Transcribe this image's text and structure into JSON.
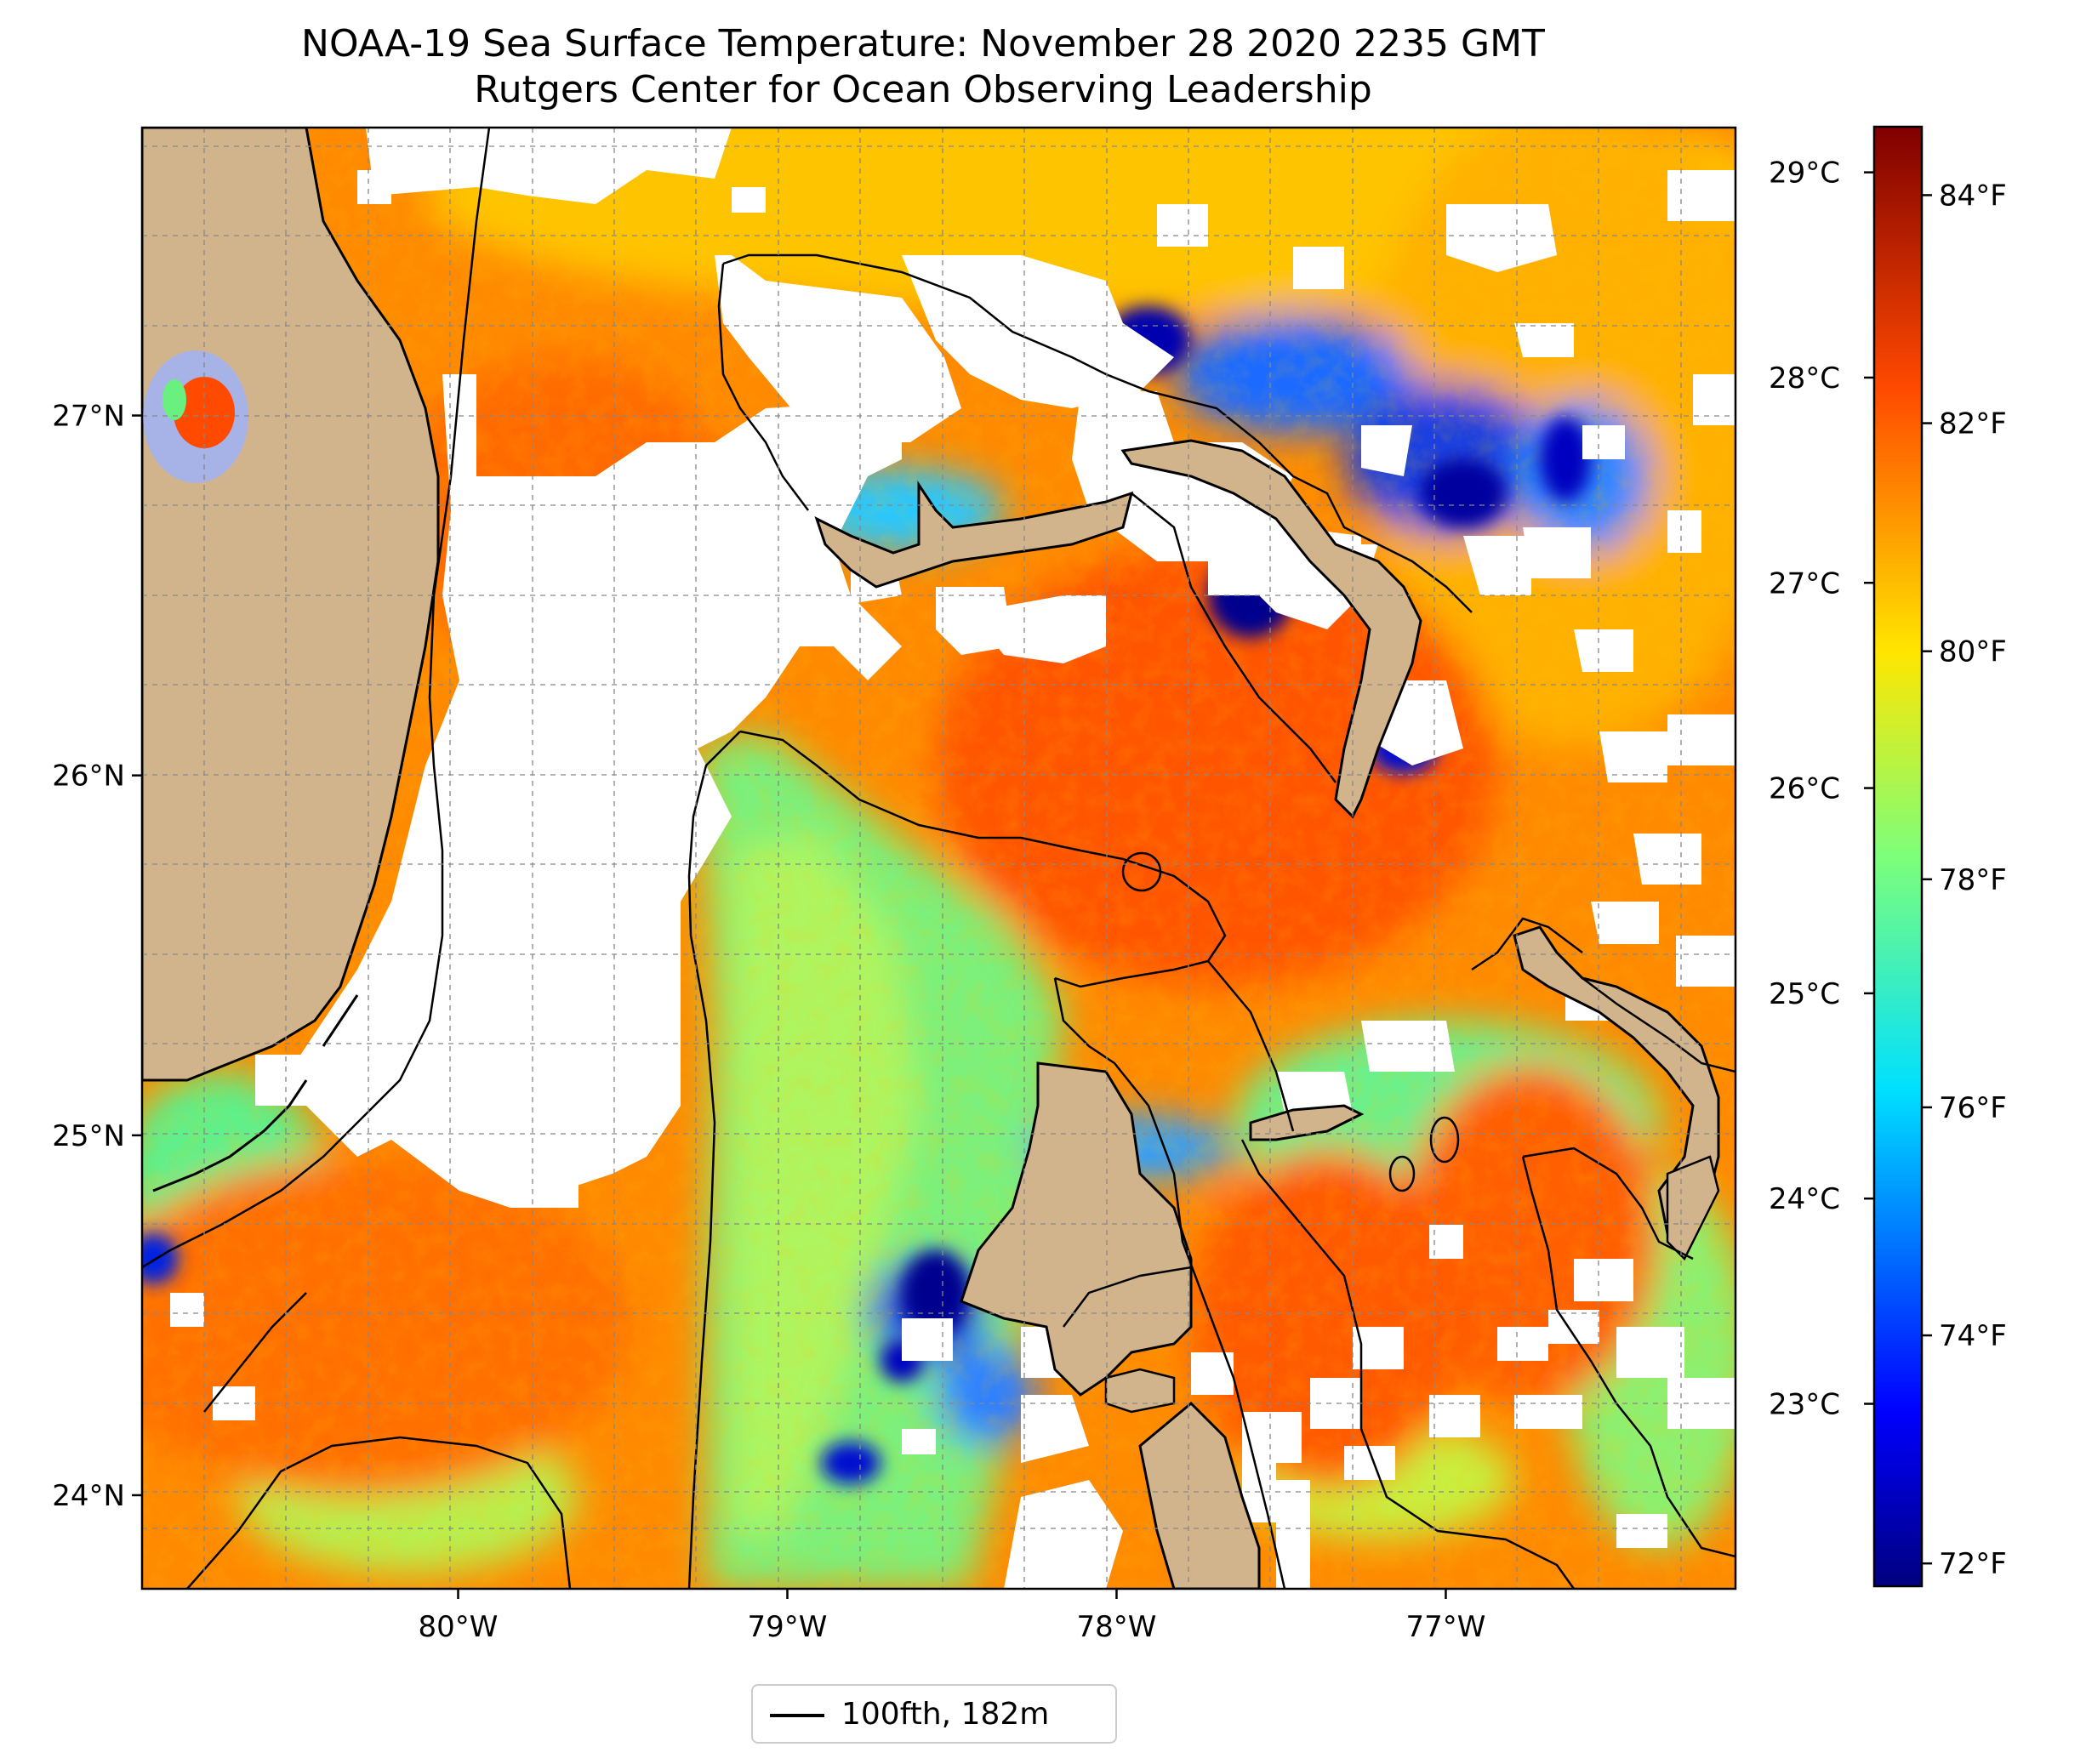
{
  "figure": {
    "title": "NOAA-19 Sea Surface Temperature: November 28 2020 2235 GMT",
    "subtitle": "Rutgers Center for Ocean Observing Leadership"
  },
  "map": {
    "extent": {
      "lon_min": -80.96,
      "lon_max": -76.12,
      "lat_min": 23.74,
      "lat_max": 27.8
    },
    "lon_ticks": [
      {
        "value": -80,
        "label": "80°W"
      },
      {
        "value": -79,
        "label": "79°W"
      },
      {
        "value": -78,
        "label": "78°W"
      },
      {
        "value": -77,
        "label": "77°W"
      }
    ],
    "lat_ticks": [
      {
        "value": 24,
        "label": "24°N"
      },
      {
        "value": 25,
        "label": "25°N"
      },
      {
        "value": 26,
        "label": "26°N"
      },
      {
        "value": 27,
        "label": "27°N"
      }
    ],
    "gridlines": "dashed",
    "land_color": "#d2b48c",
    "coast_color": "#000000"
  },
  "colorbar": {
    "colormap": "jet",
    "range_f": [
      71.8,
      84.6
    ],
    "fahrenheit_ticks": [
      {
        "value": 72,
        "label": "72°F"
      },
      {
        "value": 74,
        "label": "74°F"
      },
      {
        "value": 76,
        "label": "76°F"
      },
      {
        "value": 78,
        "label": "78°F"
      },
      {
        "value": 80,
        "label": "80°F"
      },
      {
        "value": 82,
        "label": "82°F"
      },
      {
        "value": 84,
        "label": "84°F"
      }
    ],
    "celsius_ticks": [
      {
        "value": 23,
        "label": "23°C"
      },
      {
        "value": 24,
        "label": "24°C"
      },
      {
        "value": 25,
        "label": "25°C"
      },
      {
        "value": 26,
        "label": "26°C"
      },
      {
        "value": 27,
        "label": "27°C"
      },
      {
        "value": 28,
        "label": "28°C"
      },
      {
        "value": 29,
        "label": "29°C"
      }
    ]
  },
  "legend": {
    "label": "100fth, 182m",
    "placement": "bottom-center"
  },
  "colors": {
    "sst_cold": "#00008f",
    "sst_cool": "#00e5ff",
    "sst_mid": "#7dff7a",
    "sst_warm": "#ffe600",
    "sst_hot": "#ff5a00",
    "missing": "#ffffff"
  }
}
